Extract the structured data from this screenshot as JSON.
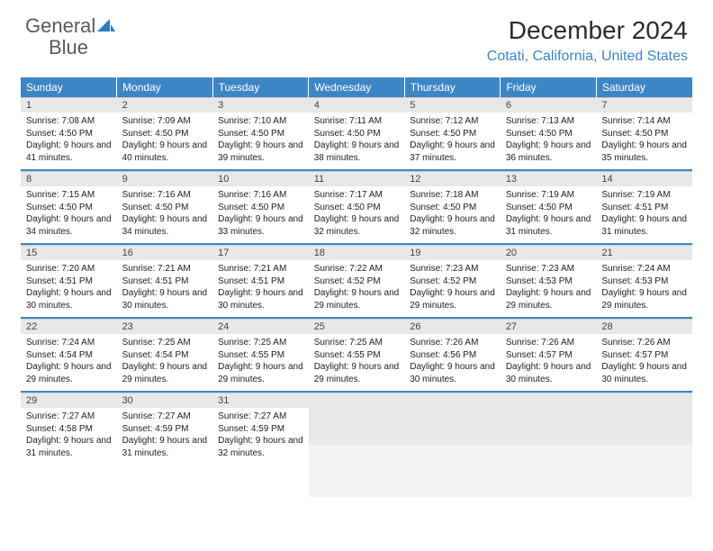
{
  "logo": {
    "word1": "General",
    "word2": "Blue"
  },
  "title": "December 2024",
  "location": "Cotati, California, United States",
  "colors": {
    "brand_blue": "#3d86c6",
    "header_text": "#ffffff",
    "daynum_bg": "#e8e8e8",
    "text": "#222222",
    "logo_gray": "#5a5a5a"
  },
  "weekdays": [
    "Sunday",
    "Monday",
    "Tuesday",
    "Wednesday",
    "Thursday",
    "Friday",
    "Saturday"
  ],
  "weeks": [
    [
      {
        "n": "1",
        "sr": "7:08 AM",
        "ss": "4:50 PM",
        "dl": "9 hours and 41 minutes."
      },
      {
        "n": "2",
        "sr": "7:09 AM",
        "ss": "4:50 PM",
        "dl": "9 hours and 40 minutes."
      },
      {
        "n": "3",
        "sr": "7:10 AM",
        "ss": "4:50 PM",
        "dl": "9 hours and 39 minutes."
      },
      {
        "n": "4",
        "sr": "7:11 AM",
        "ss": "4:50 PM",
        "dl": "9 hours and 38 minutes."
      },
      {
        "n": "5",
        "sr": "7:12 AM",
        "ss": "4:50 PM",
        "dl": "9 hours and 37 minutes."
      },
      {
        "n": "6",
        "sr": "7:13 AM",
        "ss": "4:50 PM",
        "dl": "9 hours and 36 minutes."
      },
      {
        "n": "7",
        "sr": "7:14 AM",
        "ss": "4:50 PM",
        "dl": "9 hours and 35 minutes."
      }
    ],
    [
      {
        "n": "8",
        "sr": "7:15 AM",
        "ss": "4:50 PM",
        "dl": "9 hours and 34 minutes."
      },
      {
        "n": "9",
        "sr": "7:16 AM",
        "ss": "4:50 PM",
        "dl": "9 hours and 34 minutes."
      },
      {
        "n": "10",
        "sr": "7:16 AM",
        "ss": "4:50 PM",
        "dl": "9 hours and 33 minutes."
      },
      {
        "n": "11",
        "sr": "7:17 AM",
        "ss": "4:50 PM",
        "dl": "9 hours and 32 minutes."
      },
      {
        "n": "12",
        "sr": "7:18 AM",
        "ss": "4:50 PM",
        "dl": "9 hours and 32 minutes."
      },
      {
        "n": "13",
        "sr": "7:19 AM",
        "ss": "4:50 PM",
        "dl": "9 hours and 31 minutes."
      },
      {
        "n": "14",
        "sr": "7:19 AM",
        "ss": "4:51 PM",
        "dl": "9 hours and 31 minutes."
      }
    ],
    [
      {
        "n": "15",
        "sr": "7:20 AM",
        "ss": "4:51 PM",
        "dl": "9 hours and 30 minutes."
      },
      {
        "n": "16",
        "sr": "7:21 AM",
        "ss": "4:51 PM",
        "dl": "9 hours and 30 minutes."
      },
      {
        "n": "17",
        "sr": "7:21 AM",
        "ss": "4:51 PM",
        "dl": "9 hours and 30 minutes."
      },
      {
        "n": "18",
        "sr": "7:22 AM",
        "ss": "4:52 PM",
        "dl": "9 hours and 29 minutes."
      },
      {
        "n": "19",
        "sr": "7:23 AM",
        "ss": "4:52 PM",
        "dl": "9 hours and 29 minutes."
      },
      {
        "n": "20",
        "sr": "7:23 AM",
        "ss": "4:53 PM",
        "dl": "9 hours and 29 minutes."
      },
      {
        "n": "21",
        "sr": "7:24 AM",
        "ss": "4:53 PM",
        "dl": "9 hours and 29 minutes."
      }
    ],
    [
      {
        "n": "22",
        "sr": "7:24 AM",
        "ss": "4:54 PM",
        "dl": "9 hours and 29 minutes."
      },
      {
        "n": "23",
        "sr": "7:25 AM",
        "ss": "4:54 PM",
        "dl": "9 hours and 29 minutes."
      },
      {
        "n": "24",
        "sr": "7:25 AM",
        "ss": "4:55 PM",
        "dl": "9 hours and 29 minutes."
      },
      {
        "n": "25",
        "sr": "7:25 AM",
        "ss": "4:55 PM",
        "dl": "9 hours and 29 minutes."
      },
      {
        "n": "26",
        "sr": "7:26 AM",
        "ss": "4:56 PM",
        "dl": "9 hours and 30 minutes."
      },
      {
        "n": "27",
        "sr": "7:26 AM",
        "ss": "4:57 PM",
        "dl": "9 hours and 30 minutes."
      },
      {
        "n": "28",
        "sr": "7:26 AM",
        "ss": "4:57 PM",
        "dl": "9 hours and 30 minutes."
      }
    ],
    [
      {
        "n": "29",
        "sr": "7:27 AM",
        "ss": "4:58 PM",
        "dl": "9 hours and 31 minutes."
      },
      {
        "n": "30",
        "sr": "7:27 AM",
        "ss": "4:59 PM",
        "dl": "9 hours and 31 minutes."
      },
      {
        "n": "31",
        "sr": "7:27 AM",
        "ss": "4:59 PM",
        "dl": "9 hours and 32 minutes."
      },
      null,
      null,
      null,
      null
    ]
  ],
  "labels": {
    "sunrise": "Sunrise:",
    "sunset": "Sunset:",
    "daylight": "Daylight:"
  }
}
